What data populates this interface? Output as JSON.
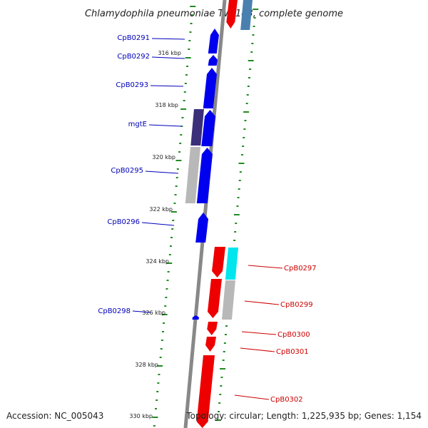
{
  "title": "Chlamydophila pneumoniae TW-183, complete genome",
  "accession": "Accession: NC_005043",
  "topology": "Topology: circular; Length: 1,225,935 bp; Genes: 1,154",
  "colors": {
    "forward_gene": "#0000ee",
    "reverse_gene": "#ee0000",
    "forward_label": "#0000bb",
    "reverse_label": "#cc0000",
    "backbone": "#888888",
    "gc_tick": "#228b22",
    "cyan_feature": "#00e5ee",
    "purple_feature": "#3b2f7a",
    "grey_feature": "#b8b8b8",
    "steelblue_feature": "#4a80b0"
  },
  "scale_ticks": [
    "316 kbp",
    "318 kbp",
    "320 kbp",
    "322 kbp",
    "324 kbp",
    "326 kbp",
    "328 kbp",
    "330 kbp"
  ],
  "forward_genes": [
    "CpB0291",
    "CpB0292",
    "CpB0293",
    "mgtE",
    "CpB0295",
    "CpB0296",
    "CpB0298"
  ],
  "reverse_genes": [
    "CpB0297",
    "CpB0299",
    "CpB0300",
    "CpB0301",
    "CpB0302"
  ]
}
